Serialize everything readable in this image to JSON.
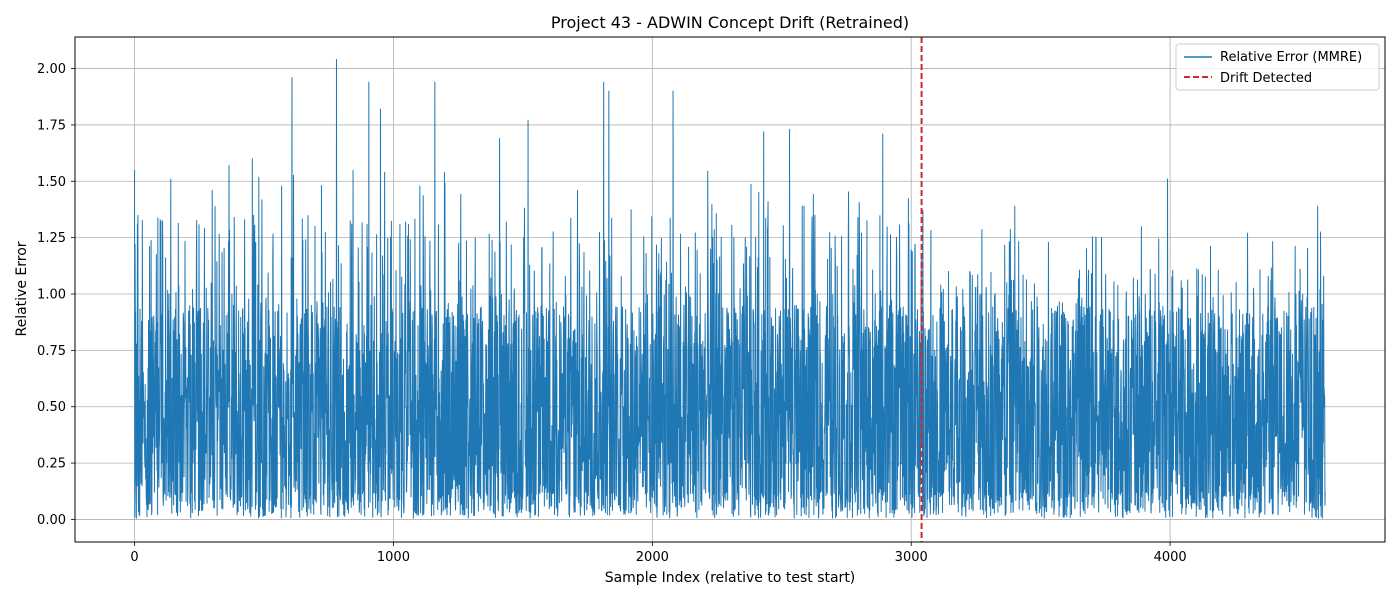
{
  "chart_data": {
    "type": "line",
    "title": "Project 43 - ADWIN Concept Drift (Retrained)",
    "xlabel": "Sample Index (relative to test start)",
    "ylabel": "Relative Error",
    "xlim": [
      -230,
      4830
    ],
    "ylim": [
      -0.1,
      2.14
    ],
    "x_ticks": [
      0,
      1000,
      2000,
      3000,
      4000
    ],
    "x_tick_labels": [
      "0",
      "1000",
      "2000",
      "3000",
      "4000"
    ],
    "y_ticks": [
      0.0,
      0.25,
      0.5,
      0.75,
      1.0,
      1.25,
      1.5,
      1.75,
      2.0
    ],
    "y_tick_labels": [
      "0.00",
      "0.25",
      "0.50",
      "0.75",
      "1.00",
      "1.25",
      "1.50",
      "1.75",
      "2.00"
    ],
    "grid": true,
    "legend_position": "top-right",
    "series": [
      {
        "name": "Relative Error (MMRE)",
        "style": "solid",
        "color": "#1f77b4",
        "n_points": 4600,
        "x_range": [
          0,
          4599
        ],
        "value_range": [
          0.0,
          2.04
        ],
        "peaks": [
          {
            "x": 0,
            "y": 1.55
          },
          {
            "x": 140,
            "y": 1.51
          },
          {
            "x": 300,
            "y": 1.46
          },
          {
            "x": 365,
            "y": 1.57
          },
          {
            "x": 455,
            "y": 1.6
          },
          {
            "x": 608,
            "y": 1.96
          },
          {
            "x": 780,
            "y": 2.04
          },
          {
            "x": 905,
            "y": 1.94
          },
          {
            "x": 950,
            "y": 1.82
          },
          {
            "x": 1160,
            "y": 1.94
          },
          {
            "x": 1410,
            "y": 1.69
          },
          {
            "x": 1520,
            "y": 1.77
          },
          {
            "x": 1812,
            "y": 1.94
          },
          {
            "x": 1832,
            "y": 1.9
          },
          {
            "x": 2080,
            "y": 1.9
          },
          {
            "x": 2430,
            "y": 1.72
          },
          {
            "x": 2530,
            "y": 1.73
          },
          {
            "x": 2890,
            "y": 1.71
          },
          {
            "x": 3045,
            "y": 1.37
          },
          {
            "x": 3400,
            "y": 1.39
          },
          {
            "x": 3990,
            "y": 1.51
          },
          {
            "x": 4570,
            "y": 1.39
          }
        ]
      },
      {
        "name": "Drift Detected",
        "style": "dashed",
        "color": "#d62728",
        "x": 3040
      }
    ]
  }
}
